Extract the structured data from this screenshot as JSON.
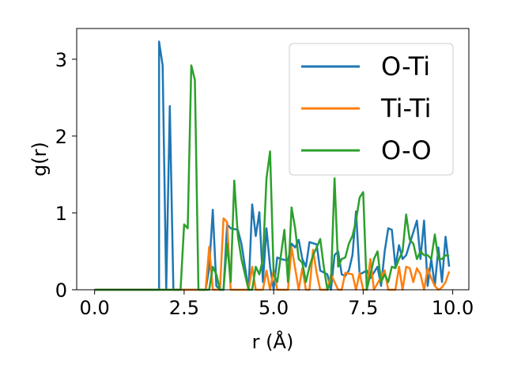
{
  "chart_data": {
    "type": "line",
    "xlabel": "r (Å)",
    "ylabel": "g(r)",
    "xlim": [
      -0.5,
      10.45
    ],
    "ylim": [
      0,
      3.4
    ],
    "xticks": [
      0.0,
      2.5,
      5.0,
      7.5,
      10.0
    ],
    "xtick_labels": [
      "0.0",
      "2.5",
      "5.0",
      "7.5",
      "10.0"
    ],
    "yticks": [
      0,
      1,
      2,
      3
    ],
    "ytick_labels": [
      "0",
      "1",
      "2",
      "3"
    ],
    "grid": false,
    "legend_position": "upper right",
    "series": [
      {
        "name": "O-Ti",
        "color": "#1f77b4",
        "points": [
          [
            0,
            0
          ],
          [
            1.8,
            0
          ],
          [
            1.8,
            3.23
          ],
          [
            1.9,
            2.92
          ],
          [
            2.0,
            0
          ],
          [
            2.1,
            2.39
          ],
          [
            2.2,
            0
          ],
          [
            2.3,
            0
          ],
          [
            3.0,
            0
          ],
          [
            3.1,
            0
          ],
          [
            3.2,
            0.28
          ],
          [
            3.3,
            1.04
          ],
          [
            3.4,
            0.05
          ],
          [
            3.5,
            0
          ],
          [
            3.6,
            0
          ],
          [
            3.7,
            0.85
          ],
          [
            3.8,
            0.8
          ],
          [
            4.0,
            0.78
          ],
          [
            4.1,
            0.6
          ],
          [
            4.2,
            0.3
          ],
          [
            4.3,
            0
          ],
          [
            4.4,
            1.11
          ],
          [
            4.5,
            0.7
          ],
          [
            4.6,
            1.01
          ],
          [
            4.7,
            0.1
          ],
          [
            4.8,
            0.8
          ],
          [
            4.9,
            0.3
          ],
          [
            5.0,
            0
          ],
          [
            5.1,
            0.42
          ],
          [
            5.2,
            0.4
          ],
          [
            5.4,
            0.38
          ],
          [
            5.5,
            0.6
          ],
          [
            5.6,
            0.55
          ],
          [
            5.7,
            0.65
          ],
          [
            5.8,
            0.4
          ],
          [
            5.9,
            0.3
          ],
          [
            6.0,
            0.62
          ],
          [
            6.2,
            0.59
          ],
          [
            6.3,
            0.25
          ],
          [
            6.5,
            0.2
          ],
          [
            6.6,
            0
          ],
          [
            6.7,
            0.45
          ],
          [
            6.8,
            0.5
          ],
          [
            6.9,
            0.2
          ],
          [
            7.0,
            0.18
          ],
          [
            7.1,
            0.25
          ],
          [
            7.2,
            0.45
          ],
          [
            7.3,
            1.02
          ],
          [
            7.4,
            0.2
          ],
          [
            7.6,
            0.25
          ],
          [
            7.7,
            0.15
          ],
          [
            7.9,
            0.3
          ],
          [
            8.0,
            0.05
          ],
          [
            8.1,
            0.5
          ],
          [
            8.2,
            0.8
          ],
          [
            8.3,
            0.78
          ],
          [
            8.4,
            0.3
          ],
          [
            8.5,
            0.58
          ],
          [
            8.6,
            0.4
          ],
          [
            8.7,
            0.45
          ],
          [
            8.8,
            0.6
          ],
          [
            8.9,
            0.75
          ],
          [
            9.0,
            0.9
          ],
          [
            9.1,
            0.4
          ],
          [
            9.2,
            0.9
          ],
          [
            9.3,
            0.05
          ],
          [
            9.4,
            0.4
          ],
          [
            9.5,
            0.05
          ],
          [
            9.6,
            0.55
          ],
          [
            9.7,
            0.1
          ],
          [
            9.8,
            0.69
          ],
          [
            9.9,
            0.3
          ]
        ]
      },
      {
        "name": "Ti-Ti",
        "color": "#ff7f0e",
        "points": [
          [
            0,
            0
          ],
          [
            3.1,
            0
          ],
          [
            3.2,
            0.56
          ],
          [
            3.3,
            0
          ],
          [
            3.5,
            0
          ],
          [
            3.6,
            0.93
          ],
          [
            3.7,
            0.88
          ],
          [
            3.8,
            0
          ],
          [
            4.3,
            0
          ],
          [
            4.4,
            0.3
          ],
          [
            4.5,
            0
          ],
          [
            4.7,
            0
          ],
          [
            4.8,
            0.25
          ],
          [
            4.9,
            0
          ],
          [
            5.0,
            0.25
          ],
          [
            5.1,
            0
          ],
          [
            5.4,
            0
          ],
          [
            5.5,
            0.55
          ],
          [
            5.6,
            0.28
          ],
          [
            5.7,
            0
          ],
          [
            5.8,
            0.28
          ],
          [
            5.9,
            0
          ],
          [
            6.0,
            0
          ],
          [
            6.1,
            0.52
          ],
          [
            6.2,
            0.22
          ],
          [
            6.3,
            0
          ],
          [
            6.5,
            0
          ],
          [
            6.6,
            0.2
          ],
          [
            6.7,
            0.1
          ],
          [
            6.8,
            0
          ],
          [
            6.9,
            0
          ],
          [
            7.0,
            0.22
          ],
          [
            7.2,
            0.2
          ],
          [
            7.3,
            0
          ],
          [
            7.4,
            0.22
          ],
          [
            7.5,
            0
          ],
          [
            7.6,
            0
          ],
          [
            7.7,
            0.4
          ],
          [
            7.8,
            0
          ],
          [
            8.1,
            0.25
          ],
          [
            8.2,
            0
          ],
          [
            8.4,
            0
          ],
          [
            8.5,
            0.3
          ],
          [
            8.6,
            0
          ],
          [
            8.7,
            0.3
          ],
          [
            8.8,
            0.28
          ],
          [
            8.9,
            0.1
          ],
          [
            9.0,
            0.28
          ],
          [
            9.1,
            0.2
          ],
          [
            9.2,
            0
          ],
          [
            9.3,
            0.28
          ],
          [
            9.4,
            0.15
          ],
          [
            9.5,
            0.05
          ],
          [
            9.6,
            0
          ],
          [
            9.7,
            0.03
          ],
          [
            9.8,
            0.1
          ],
          [
            9.9,
            0.24
          ]
        ]
      },
      {
        "name": "O-O",
        "color": "#2ca02c",
        "points": [
          [
            0,
            0
          ],
          [
            2.4,
            0
          ],
          [
            2.5,
            0.85
          ],
          [
            2.6,
            0.8
          ],
          [
            2.7,
            2.92
          ],
          [
            2.8,
            2.73
          ],
          [
            2.9,
            0
          ],
          [
            3.0,
            0
          ],
          [
            3.2,
            0
          ],
          [
            3.3,
            0.3
          ],
          [
            3.4,
            0.2
          ],
          [
            3.5,
            0
          ],
          [
            3.6,
            0
          ],
          [
            3.7,
            0.6
          ],
          [
            3.8,
            0.1
          ],
          [
            3.9,
            1.42
          ],
          [
            4.0,
            0.7
          ],
          [
            4.1,
            0.4
          ],
          [
            4.2,
            0.2
          ],
          [
            4.3,
            0
          ],
          [
            4.4,
            0
          ],
          [
            4.5,
            0.3
          ],
          [
            4.6,
            0.2
          ],
          [
            4.7,
            0.4
          ],
          [
            4.8,
            1.45
          ],
          [
            4.9,
            1.8
          ],
          [
            5.0,
            0.2
          ],
          [
            5.1,
            0.1
          ],
          [
            5.3,
            0.78
          ],
          [
            5.4,
            0.1
          ],
          [
            5.5,
            1.07
          ],
          [
            5.6,
            0.8
          ],
          [
            5.7,
            0.4
          ],
          [
            5.8,
            0.35
          ],
          [
            5.9,
            0.1
          ],
          [
            6.0,
            0.3
          ],
          [
            6.1,
            0.45
          ],
          [
            6.2,
            0.55
          ],
          [
            6.3,
            0.66
          ],
          [
            6.4,
            0.3
          ],
          [
            6.5,
            0
          ],
          [
            6.6,
            0.1
          ],
          [
            6.7,
            1.45
          ],
          [
            6.8,
            0.3
          ],
          [
            6.9,
            0.4
          ],
          [
            7.0,
            0.42
          ],
          [
            7.1,
            0.6
          ],
          [
            7.2,
            0.7
          ],
          [
            7.3,
            0.9
          ],
          [
            7.4,
            1.2
          ],
          [
            7.5,
            1.27
          ],
          [
            7.6,
            0
          ],
          [
            7.7,
            0.2
          ],
          [
            7.8,
            0.4
          ],
          [
            7.9,
            0.5
          ],
          [
            8.0,
            0.1
          ],
          [
            8.1,
            0.2
          ],
          [
            8.2,
            0.1
          ],
          [
            8.3,
            0.3
          ],
          [
            8.4,
            0.28
          ],
          [
            8.5,
            0.4
          ],
          [
            8.6,
            0.5
          ],
          [
            8.7,
            0.98
          ],
          [
            8.8,
            0.65
          ],
          [
            8.9,
            0.6
          ],
          [
            9.0,
            0.4
          ],
          [
            9.1,
            0.5
          ],
          [
            9.2,
            0.45
          ],
          [
            9.3,
            0.45
          ],
          [
            9.4,
            0.4
          ],
          [
            9.5,
            0.72
          ],
          [
            9.6,
            0.4
          ],
          [
            9.7,
            0.4
          ],
          [
            9.8,
            0.45
          ],
          [
            9.9,
            0.44
          ]
        ]
      }
    ]
  }
}
